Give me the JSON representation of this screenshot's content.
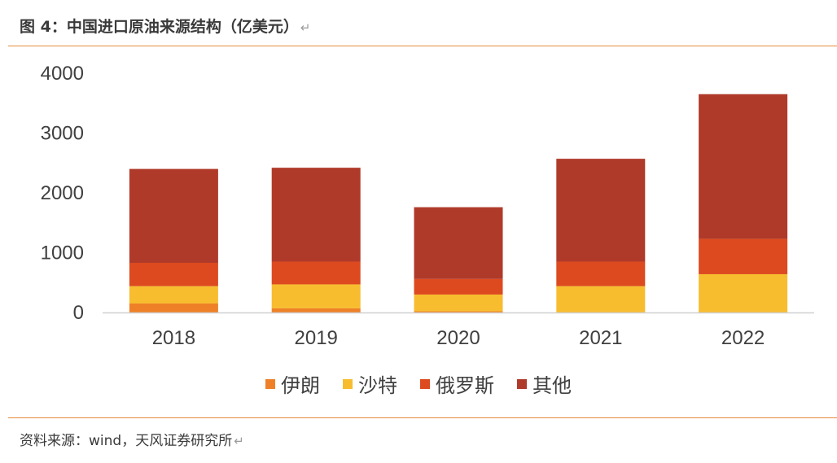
{
  "figure": {
    "title": "图 4：中国进口原油来源结构（亿美元）",
    "source": "资料来源：wind，天风证券研究所"
  },
  "chart_data": {
    "type": "bar",
    "stacked": true,
    "categories": [
      "2018",
      "2019",
      "2020",
      "2021",
      "2022"
    ],
    "ylim": [
      0,
      4000
    ],
    "yticks": [
      0,
      1000,
      2000,
      3000,
      4000
    ],
    "grid": false,
    "legend_position": "bottom",
    "series": [
      {
        "name": "伊朗",
        "color": "#ee8127",
        "values": [
          150,
          70,
          20,
          0,
          0
        ]
      },
      {
        "name": "沙特",
        "color": "#f7bd2f",
        "values": [
          290,
          400,
          280,
          440,
          640
        ]
      },
      {
        "name": "俄罗斯",
        "color": "#dd4a1f",
        "values": [
          390,
          380,
          260,
          410,
          590
        ]
      },
      {
        "name": "其他",
        "color": "#b03a2a",
        "values": [
          1570,
          1570,
          1200,
          1720,
          2420
        ]
      }
    ]
  }
}
